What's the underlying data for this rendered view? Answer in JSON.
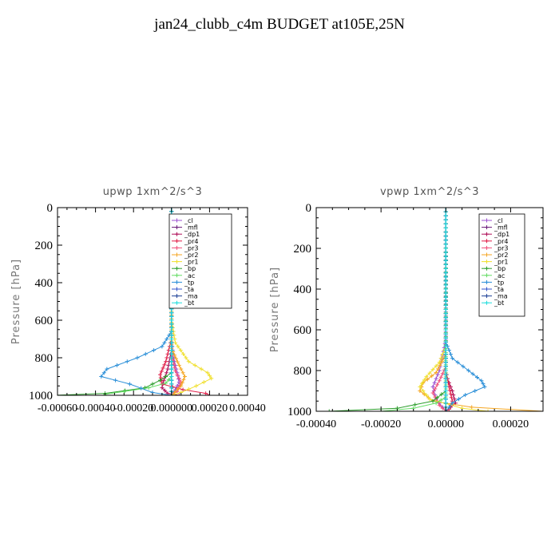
{
  "title": "jan24_clubb_c4m  BUDGET at105E,25N",
  "colors": {
    "_cl": "#9b4fd0",
    "_mfl": "#6a1b7a",
    "_dp1": "#b0125a",
    "_pr4": "#e0204a",
    "_pr3": "#f0507a",
    "_pr2": "#f5a623",
    "_pr1": "#f0e030",
    "_bp": "#2e9e2e",
    "_ac": "#66dd66",
    "_tp": "#2a8fd8",
    "_ta": "#3355cc",
    "_ma": "#224499",
    "_bt": "#22dddd"
  },
  "chart_data": [
    {
      "type": "line",
      "title": "upwp   1xm^2/s^3",
      "ylabel": "Pressure [hPa]",
      "xlim": [
        -0.0006,
        0.0004
      ],
      "ylim": [
        0,
        1000
      ],
      "y_inverted": true,
      "xticks": [
        -0.0006,
        -0.0004,
        -0.0002,
        0.0,
        0.0002,
        0.0004
      ],
      "xtick_labels": [
        "-0.00060",
        "-0.00040",
        "-0.00020",
        "0.000000",
        "0.00020",
        "0.00040"
      ],
      "yticks": [
        0,
        200,
        400,
        600,
        800,
        1000
      ],
      "ytick_labels": [
        "0",
        "200",
        "400",
        "600",
        "800",
        "1000"
      ],
      "legend_position": "top-right",
      "series": [
        {
          "name": "_cl",
          "points": [
            [
              0,
              0
            ],
            [
              0,
              700
            ],
            [
              1e-05,
              800
            ],
            [
              3e-05,
              880
            ],
            [
              4e-05,
              930
            ],
            [
              2e-05,
              970
            ],
            [
              0,
              1000
            ]
          ]
        },
        {
          "name": "_mfl",
          "points": [
            [
              0,
              0
            ],
            [
              0,
              1000
            ]
          ]
        },
        {
          "name": "_dp1",
          "points": [
            [
              0,
              0
            ],
            [
              0,
              760
            ],
            [
              -2e-05,
              860
            ],
            [
              -4e-05,
              920
            ],
            [
              -5e-05,
              960
            ],
            [
              -2e-05,
              990
            ],
            [
              4e-05,
              1000
            ]
          ]
        },
        {
          "name": "_pr4",
          "points": [
            [
              0,
              0
            ],
            [
              0,
              700
            ],
            [
              -3e-05,
              820
            ],
            [
              -6e-05,
              890
            ],
            [
              -5e-05,
              940
            ],
            [
              6e-05,
              970
            ],
            [
              0.00018,
              990
            ],
            [
              0.0002,
              1000
            ]
          ]
        },
        {
          "name": "_pr3",
          "points": [
            [
              0,
              0
            ],
            [
              0,
              780
            ],
            [
              2e-05,
              870
            ],
            [
              5e-05,
              930
            ],
            [
              3e-05,
              980
            ],
            [
              0,
              1000
            ]
          ]
        },
        {
          "name": "_pr2",
          "points": [
            [
              0,
              0
            ],
            [
              0,
              750
            ],
            [
              4e-05,
              840
            ],
            [
              7e-05,
              900
            ],
            [
              5e-05,
              950
            ],
            [
              0,
              1000
            ]
          ]
        },
        {
          "name": "_pr1",
          "points": [
            [
              0,
              0
            ],
            [
              0,
              600
            ],
            [
              2e-05,
              720
            ],
            [
              9e-05,
              820
            ],
            [
              0.00019,
              880
            ],
            [
              0.00021,
              910
            ],
            [
              0.00013,
              950
            ],
            [
              5e-05,
              985
            ],
            [
              0,
              1000
            ]
          ]
        },
        {
          "name": "_bp",
          "points": [
            [
              0,
              0
            ],
            [
              0,
              880
            ],
            [
              -6e-05,
              920
            ],
            [
              -0.00014,
              960
            ],
            [
              -0.00035,
              990
            ],
            [
              -0.00062,
              1000
            ]
          ]
        },
        {
          "name": "_ac",
          "points": [
            [
              0,
              0
            ],
            [
              0,
              900
            ],
            [
              -3e-05,
              935
            ],
            [
              -0.00012,
              960
            ],
            [
              -0.00025,
              980
            ],
            [
              -0.00035,
              995
            ]
          ]
        },
        {
          "name": "_tp",
          "points": [
            [
              0,
              0
            ],
            [
              0,
              660
            ],
            [
              -5e-05,
              740
            ],
            [
              -0.00018,
              800
            ],
            [
              -0.00034,
              860
            ],
            [
              -0.00037,
              900
            ],
            [
              -0.00022,
              940
            ],
            [
              -0.0001,
              985
            ],
            [
              0,
              1000
            ]
          ]
        },
        {
          "name": "_ta",
          "points": [
            [
              0,
              0
            ],
            [
              0,
              1000
            ]
          ]
        },
        {
          "name": "_ma",
          "points": [
            [
              0,
              0
            ],
            [
              0,
              1000
            ]
          ]
        },
        {
          "name": "_bt",
          "points": [
            [
              0,
              0
            ],
            [
              0,
              1000
            ]
          ]
        }
      ]
    },
    {
      "type": "line",
      "title": "vpwp   1xm^2/s^3",
      "ylabel": "Pressure [hPa]",
      "xlim": [
        -0.0004,
        0.0003
      ],
      "ylim": [
        0,
        1000
      ],
      "y_inverted": true,
      "xticks": [
        -0.0004,
        -0.0002,
        0.0,
        0.0002
      ],
      "xtick_labels": [
        "-0.00040",
        "-0.00020",
        "0.00000",
        "0.00020"
      ],
      "yticks": [
        0,
        200,
        400,
        600,
        800,
        1000
      ],
      "ytick_labels": [
        "0",
        "200",
        "400",
        "600",
        "800",
        "1000"
      ],
      "legend_position": "top-right",
      "series": [
        {
          "name": "_cl",
          "points": [
            [
              0,
              0
            ],
            [
              0,
              650
            ],
            [
              -2e-05,
              800
            ],
            [
              -4e-05,
              880
            ],
            [
              -3e-05,
              940
            ],
            [
              0,
              1000
            ]
          ]
        },
        {
          "name": "_mfl",
          "points": [
            [
              0,
              0
            ],
            [
              0,
              1000
            ]
          ]
        },
        {
          "name": "_dp1",
          "points": [
            [
              0,
              0
            ],
            [
              0,
              820
            ],
            [
              2e-05,
              900
            ],
            [
              3e-05,
              960
            ],
            [
              0,
              1000
            ]
          ]
        },
        {
          "name": "_pr4",
          "points": [
            [
              0,
              0
            ],
            [
              0,
              800
            ],
            [
              1e-05,
              880
            ],
            [
              2e-05,
              950
            ],
            [
              1e-05,
              990
            ],
            [
              0,
              1000
            ]
          ]
        },
        {
          "name": "_pr3",
          "points": [
            [
              0,
              0
            ],
            [
              0,
              780
            ],
            [
              -2e-05,
              850
            ],
            [
              -4e-05,
              910
            ],
            [
              -2e-05,
              970
            ],
            [
              0,
              1000
            ]
          ]
        },
        {
          "name": "_pr2",
          "points": [
            [
              0,
              0
            ],
            [
              0,
              720
            ],
            [
              -3e-05,
              810
            ],
            [
              -7e-05,
              860
            ],
            [
              -8e-05,
              900
            ],
            [
              -4e-05,
              950
            ],
            [
              8e-05,
              980
            ],
            [
              0.0003,
              1000
            ]
          ]
        },
        {
          "name": "_pr1",
          "points": [
            [
              0,
              0
            ],
            [
              0,
              680
            ],
            [
              -2e-05,
              760
            ],
            [
              -6e-05,
              830
            ],
            [
              -8e-05,
              880
            ],
            [
              -5e-05,
              940
            ],
            [
              5e-05,
              985
            ],
            [
              0.00013,
              1000
            ]
          ]
        },
        {
          "name": "_bp",
          "points": [
            [
              0,
              0
            ],
            [
              0,
              900
            ],
            [
              -4e-05,
              950
            ],
            [
              -0.00015,
              985
            ],
            [
              -0.00036,
              1000
            ]
          ]
        },
        {
          "name": "_ac",
          "points": [
            [
              0,
              0
            ],
            [
              0,
              930
            ],
            [
              -3e-05,
              960
            ],
            [
              -0.0001,
              985
            ],
            [
              -0.0002,
              1000
            ]
          ]
        },
        {
          "name": "_tp",
          "points": [
            [
              0,
              0
            ],
            [
              0,
              660
            ],
            [
              2e-05,
              740
            ],
            [
              7e-05,
              800
            ],
            [
              0.00011,
              850
            ],
            [
              0.00012,
              880
            ],
            [
              6e-05,
              920
            ],
            [
              2e-05,
              960
            ],
            [
              0,
              1000
            ]
          ]
        },
        {
          "name": "_ta",
          "points": [
            [
              0,
              0
            ],
            [
              0,
              1000
            ]
          ]
        },
        {
          "name": "_ma",
          "points": [
            [
              0,
              0
            ],
            [
              0,
              1000
            ]
          ]
        },
        {
          "name": "_bt",
          "points": [
            [
              0,
              0
            ],
            [
              0,
              1000
            ]
          ]
        }
      ]
    }
  ]
}
